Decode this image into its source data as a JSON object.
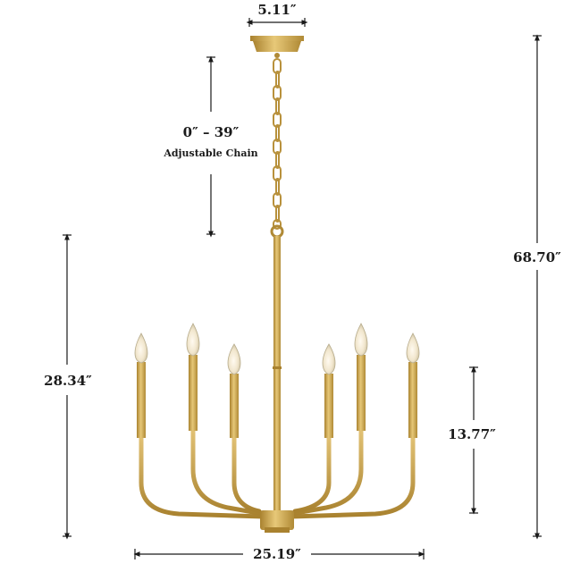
{
  "product": {
    "name": "Six-light gold candle chandelier",
    "finish_color": "#c9a24a",
    "bulb_color": "#f3e9cf",
    "dimension_line_color": "#1a1a1a"
  },
  "dimensions": {
    "canopy_width": "5.11″",
    "chain_length": "0″ – 39″",
    "chain_note": "Adjustable Chain",
    "total_height": "68.70″",
    "body_height": "28.34″",
    "candle_height": "13.77″",
    "total_width": "25.19″"
  }
}
